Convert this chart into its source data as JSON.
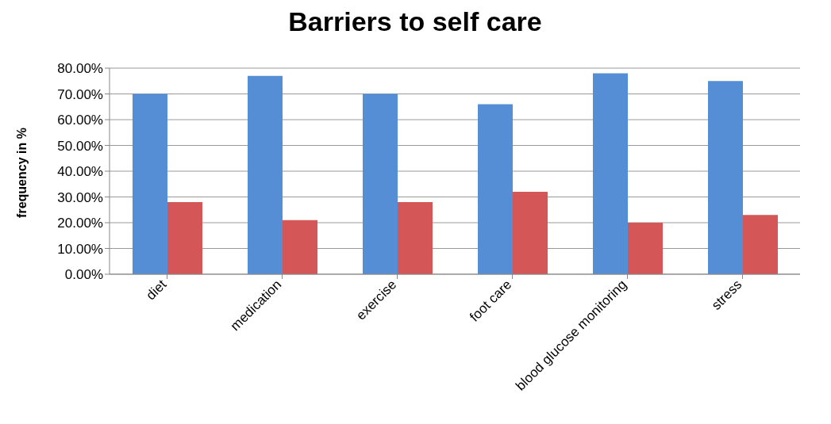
{
  "chart_data": {
    "type": "bar",
    "title": "Barriers to self care",
    "ylabel": "frequency in %",
    "categories": [
      "diet",
      "medication",
      "exercise",
      "foot care",
      "blood glucose monitoring",
      "stress"
    ],
    "series": [
      {
        "color": "#558ed5",
        "values": [
          70,
          77,
          70,
          66,
          78,
          75
        ]
      },
      {
        "color": "#d55656",
        "values": [
          28,
          21,
          28,
          32,
          20,
          23
        ]
      }
    ],
    "ylim": [
      0,
      80
    ],
    "yticks": [
      {
        "value": 0,
        "label": "0.00%"
      },
      {
        "value": 10,
        "label": "10.00%"
      },
      {
        "value": 20,
        "label": "20.00%"
      },
      {
        "value": 30,
        "label": "30.00%"
      },
      {
        "value": 40,
        "label": "40.00%"
      },
      {
        "value": 50,
        "label": "50.00%"
      },
      {
        "value": 60,
        "label": "60.00%"
      },
      {
        "value": 70,
        "label": "70.00%"
      },
      {
        "value": 80,
        "label": "80.00%"
      }
    ],
    "grid": "y",
    "legend": false
  }
}
